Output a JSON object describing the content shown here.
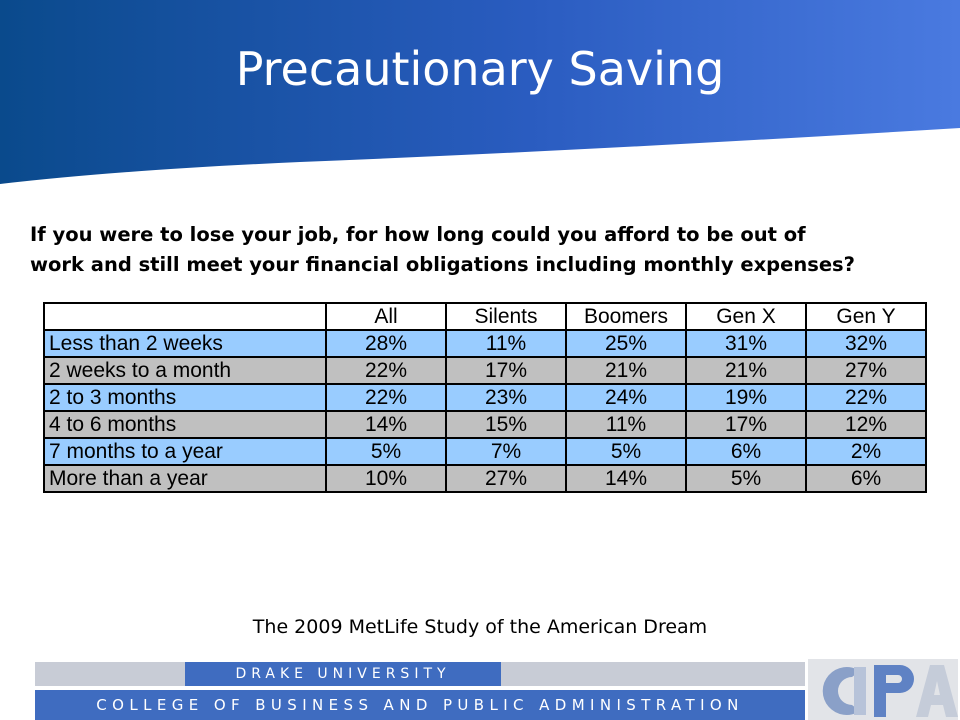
{
  "header": {
    "title": "Precautionary Saving"
  },
  "question": {
    "line1": "If you were to lose your job, for how long could you afford to be out of",
    "line2": "work and still meet your financial obligations including monthly expenses?"
  },
  "table": {
    "columns": [
      "All",
      "Silents",
      "Boomers",
      "Gen X",
      "Gen Y"
    ],
    "rows": [
      {
        "label": "Less than 2 weeks",
        "values": [
          "28%",
          "11%",
          "25%",
          "31%",
          "32%"
        ]
      },
      {
        "label": "2 weeks to a month",
        "values": [
          "22%",
          "17%",
          "21%",
          "21%",
          "27%"
        ]
      },
      {
        "label": "2 to 3 months",
        "values": [
          "22%",
          "23%",
          "24%",
          "19%",
          "22%"
        ]
      },
      {
        "label": "4 to 6 months",
        "values": [
          "14%",
          "15%",
          "11%",
          "17%",
          "12%"
        ]
      },
      {
        "label": "7 months to a year",
        "values": [
          "5%",
          "7%",
          "5%",
          "6%",
          "2%"
        ]
      },
      {
        "label": "More than a year",
        "values": [
          "10%",
          "27%",
          "14%",
          "5%",
          "6%"
        ]
      }
    ],
    "row_colors": [
      "#99ccff",
      "#c0c0c0"
    ]
  },
  "source": "The 2009 MetLife Study of the American Dream",
  "footer": {
    "university": "DRAKE UNIVERSITY",
    "college": "COLLEGE OF BUSINESS AND PUBLIC ADMINISTRATION",
    "logo": "CBPA"
  },
  "colors": {
    "banner_dark": "#0a4a8c",
    "banner_light": "#3f6fd4",
    "footer_blue": "#3f6cc0"
  }
}
